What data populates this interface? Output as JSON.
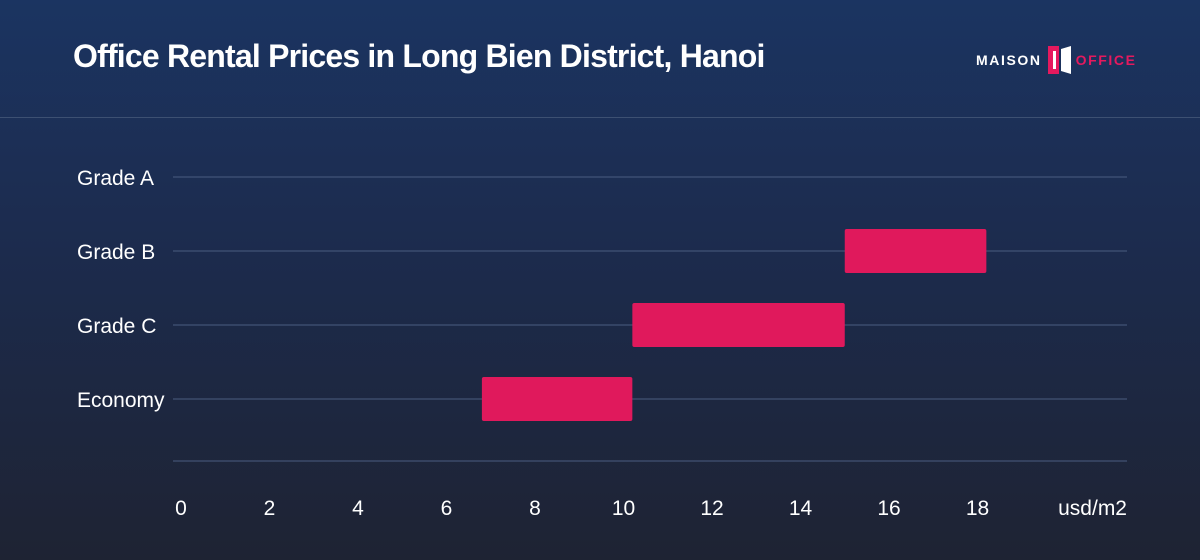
{
  "header": {
    "title": "Office Rental Prices in Long Bien District, Hanoi",
    "logo": {
      "left_text": "MAISON",
      "right_text": "OFFICE"
    }
  },
  "chart_data": {
    "type": "bar",
    "orientation": "horizontal-range",
    "title": "Office Rental Prices in Long Bien District, Hanoi",
    "xlabel": "usd/m2",
    "ylabel": "",
    "xlim": [
      0,
      19.7
    ],
    "x_ticks": [
      0,
      2,
      4,
      6,
      8,
      10,
      12,
      14,
      16,
      18
    ],
    "categories": [
      "Grade A",
      "Grade B",
      "Grade C",
      "Economy"
    ],
    "ranges": [
      {
        "category": "Grade A",
        "low": null,
        "high": null
      },
      {
        "category": "Grade B",
        "low": 15,
        "high": 18.2
      },
      {
        "category": "Grade C",
        "low": 10.2,
        "high": 15
      },
      {
        "category": "Economy",
        "low": 6.8,
        "high": 10.2
      }
    ],
    "bar_color": "#e0195c",
    "grid": true,
    "legend": "none"
  },
  "colors": {
    "accent": "#e0195c",
    "gridline": "#4a5d80",
    "text": "#ffffff"
  }
}
